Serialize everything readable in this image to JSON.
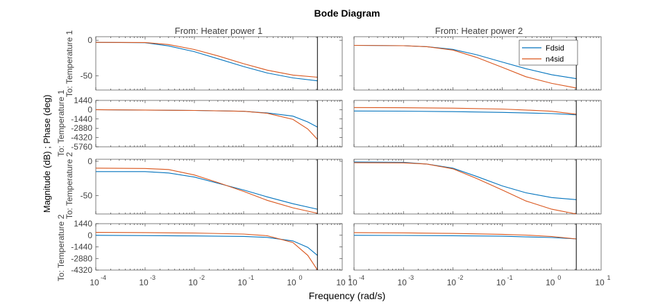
{
  "title": "Bode Diagram",
  "xlabel": "Frequency  (rad/s)",
  "ylabel": "Magnitude (dB) ; Phase (deg)",
  "column_titles": [
    "From: Heater power 1",
    "From: Heater power 2"
  ],
  "row_labels": [
    "To: Temperature 1",
    "To: Temperature 1",
    "To: Temperature 2",
    "To: Temperature 2"
  ],
  "legend": [
    "Fdsid",
    "n4sid"
  ],
  "colors": {
    "Fdsid": "#0072BD",
    "n4sid": "#D95319",
    "axis": "#262626",
    "text": "#404040"
  },
  "chart_data": {
    "type": "line",
    "xscale": "log",
    "xlim": [
      0.0001,
      10
    ],
    "xticks": [
      0.0001,
      0.001,
      0.01,
      0.1,
      1,
      10
    ],
    "xtick_labels": [
      "10",
      "10",
      "10",
      "10",
      "10",
      "10"
    ],
    "xtick_exponents": [
      "-4",
      "-3",
      "-2",
      "-1",
      "0",
      "1"
    ],
    "nyquist_frequency": 3.14,
    "legend_location": "top-right of the From: Heater power 2 / To: Temperature 1 magnitude plot",
    "panels": [
      {
        "row": 0,
        "col": 0,
        "kind": "magnitude",
        "ylim": [
          -70,
          5
        ],
        "yticks": [
          0,
          -50
        ],
        "ytick_labels": [
          "0",
          "-50"
        ],
        "series": [
          {
            "name": "Fdsid",
            "x": [
              0.0001,
              0.001,
              0.003,
              0.01,
              0.03,
              0.1,
              0.3,
              1,
              3.14
            ],
            "y": [
              -3,
              -3.5,
              -8,
              -16,
              -26,
              -37,
              -46,
              -53,
              -57
            ]
          },
          {
            "name": "n4sid",
            "x": [
              0.0001,
              0.001,
              0.003,
              0.01,
              0.03,
              0.1,
              0.3,
              1,
              3.14
            ],
            "y": [
              -3,
              -3.2,
              -6,
              -13,
              -22,
              -33,
              -42,
              -49,
              -52
            ]
          }
        ]
      },
      {
        "row": 0,
        "col": 1,
        "kind": "magnitude",
        "ylim": [
          -75,
          5
        ],
        "yticks": [],
        "ytick_labels": [],
        "series": [
          {
            "name": "Fdsid",
            "x": [
              0.0001,
              0.001,
              0.003,
              0.01,
              0.03,
              0.1,
              0.3,
              1,
              3.14
            ],
            "y": [
              -8,
              -8.5,
              -10,
              -14,
              -22,
              -33,
              -43,
              -52,
              -58
            ]
          },
          {
            "name": "n4sid",
            "x": [
              0.0001,
              0.001,
              0.003,
              0.01,
              0.03,
              0.1,
              0.3,
              1,
              3.14
            ],
            "y": [
              -8,
              -8.5,
              -10,
              -15,
              -26,
              -41,
              -55,
              -65,
              -72
            ]
          }
        ]
      },
      {
        "row": 1,
        "col": 0,
        "kind": "phase",
        "ylim": [
          -5760,
          1440
        ],
        "yticks": [
          1440,
          0,
          -1440,
          -2880,
          -4320,
          -5760
        ],
        "ytick_labels": [
          "1440",
          "0",
          "-1440",
          "-2880",
          "-4320",
          "-5760"
        ],
        "series": [
          {
            "name": "Fdsid",
            "x": [
              0.0001,
              0.001,
              0.01,
              0.1,
              0.3,
              1,
              2,
              3.14
            ],
            "y": [
              0,
              -60,
              -120,
              -250,
              -500,
              -1000,
              -1900,
              -2700
            ]
          },
          {
            "name": "n4sid",
            "x": [
              0.0001,
              0.001,
              0.01,
              0.1,
              0.3,
              1,
              2,
              3.14
            ],
            "y": [
              0,
              -50,
              -120,
              -250,
              -560,
              -1500,
              -3000,
              -4600
            ]
          }
        ]
      },
      {
        "row": 1,
        "col": 1,
        "kind": "phase",
        "ylim": [
          -5760,
          1440
        ],
        "yticks": [],
        "ytick_labels": [],
        "series": [
          {
            "name": "Fdsid",
            "x": [
              0.0001,
              0.001,
              0.01,
              0.1,
              0.3,
              1,
              3.14
            ],
            "y": [
              -200,
              -230,
              -300,
              -420,
              -500,
              -600,
              -800
            ]
          },
          {
            "name": "n4sid",
            "x": [
              0.0001,
              0.001,
              0.01,
              0.1,
              0.3,
              1,
              3.14
            ],
            "y": [
              330,
              300,
              240,
              100,
              -50,
              -250,
              -700
            ]
          }
        ]
      },
      {
        "row": 2,
        "col": 0,
        "kind": "magnitude",
        "ylim": [
          -77,
          3
        ],
        "yticks": [
          0,
          -50
        ],
        "ytick_labels": [
          "0",
          "-50"
        ],
        "series": [
          {
            "name": "Fdsid",
            "x": [
              0.0001,
              0.001,
              0.003,
              0.01,
              0.03,
              0.1,
              0.3,
              1,
              3.14
            ],
            "y": [
              -15,
              -15,
              -17,
              -23,
              -32,
              -42,
              -52,
              -62,
              -70
            ]
          },
          {
            "name": "n4sid",
            "x": [
              0.0001,
              0.001,
              0.003,
              0.01,
              0.03,
              0.1,
              0.3,
              1,
              3.14
            ],
            "y": [
              -10,
              -10.5,
              -12,
              -20,
              -31,
              -44,
              -57,
              -68,
              -76
            ]
          }
        ]
      },
      {
        "row": 2,
        "col": 1,
        "kind": "magnitude",
        "ylim": [
          -77,
          3
        ],
        "yticks": [],
        "ytick_labels": [],
        "series": [
          {
            "name": "Fdsid",
            "x": [
              0.0001,
              0.001,
              0.003,
              0.01,
              0.03,
              0.1,
              0.3,
              1,
              3.14
            ],
            "y": [
              -1,
              -1.5,
              -4,
              -10,
              -22,
              -36,
              -46,
              -53,
              -56
            ]
          },
          {
            "name": "n4sid",
            "x": [
              0.0001,
              0.001,
              0.003,
              0.01,
              0.03,
              0.1,
              0.3,
              1,
              3.14
            ],
            "y": [
              -2,
              -2.3,
              -4,
              -11,
              -25,
              -42,
              -58,
              -70,
              -77
            ]
          }
        ]
      },
      {
        "row": 3,
        "col": 0,
        "kind": "phase",
        "ylim": [
          -4320,
          1440
        ],
        "yticks": [
          1440,
          0,
          -1440,
          -2880,
          -4320
        ],
        "ytick_labels": [
          "1440",
          "0",
          "-1440",
          "-2880",
          "-4320"
        ],
        "series": [
          {
            "name": "Fdsid",
            "x": [
              0.0001,
              0.001,
              0.01,
              0.1,
              0.3,
              1,
              2,
              3.14
            ],
            "y": [
              0,
              -40,
              -80,
              -140,
              -260,
              -700,
              -1500,
              -2500
            ]
          },
          {
            "name": "n4sid",
            "x": [
              0.0001,
              0.001,
              0.01,
              0.1,
              0.3,
              1,
              2,
              3.14
            ],
            "y": [
              360,
              330,
              280,
              150,
              -60,
              -900,
              -2500,
              -4300
            ]
          }
        ]
      },
      {
        "row": 3,
        "col": 1,
        "kind": "phase",
        "ylim": [
          -4320,
          1440
        ],
        "yticks": [],
        "ytick_labels": [],
        "series": [
          {
            "name": "Fdsid",
            "x": [
              0.0001,
              0.001,
              0.01,
              0.1,
              0.3,
              1,
              3.14
            ],
            "y": [
              0,
              -20,
              -60,
              -120,
              -200,
              -280,
              -450
            ]
          },
          {
            "name": "n4sid",
            "x": [
              0.0001,
              0.001,
              0.01,
              0.1,
              0.3,
              1,
              3.14
            ],
            "y": [
              330,
              300,
              230,
              120,
              20,
              -150,
              -450
            ]
          }
        ]
      }
    ]
  }
}
